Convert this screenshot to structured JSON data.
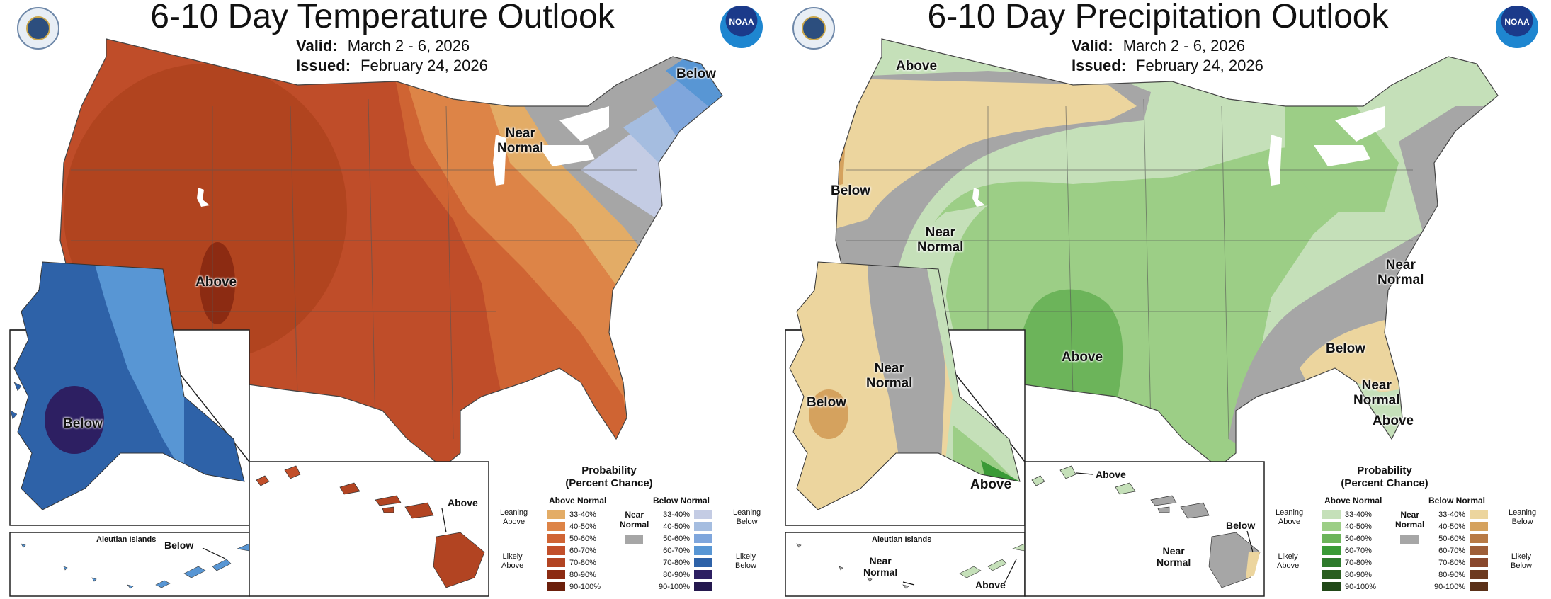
{
  "colors": {
    "above_temp": [
      "#e3ac66",
      "#dd8447",
      "#d06434",
      "#c24f2a",
      "#b24422",
      "#8c2b12",
      "#6b1f0b"
    ],
    "below_temp": [
      "#c4cce4",
      "#a5bde0",
      "#7fa6dc",
      "#5896d4",
      "#2e62a8",
      "#2d1f62",
      "#24184e"
    ],
    "above_precip": [
      "#c5e0b9",
      "#9cce86",
      "#6cb45a",
      "#3a9a36",
      "#2e7a2c",
      "#2a5e20",
      "#214818"
    ],
    "below_precip": [
      "#ecd59e",
      "#d5a25e",
      "#b87a45",
      "#9e5e38",
      "#89482d",
      "#6d3a20",
      "#5a3018"
    ],
    "near": "#a6a6a6"
  },
  "temperature": {
    "title": "6-10 Day Temperature Outlook",
    "valid_label": "Valid:",
    "valid_dates": "March 2 - 6, 2026",
    "issued_label": "Issued:",
    "issued_date": "February 24, 2026",
    "noaa": "NOAA",
    "labels": {
      "below_ne": "Below",
      "near_normal": "Near\nNormal",
      "above_sw": "Above",
      "below_ak": "Below",
      "below_aleutians": "Below",
      "above_hi": "Above"
    },
    "aleutian_islands": "Aleutian Islands",
    "legend": {
      "title": "Probability\n(Percent Chance)",
      "above_header": "Above Normal",
      "below_header": "Below Normal",
      "near_header": "Near\nNormal",
      "leaning_above": "Leaning\nAbove",
      "likely_above": "Likely\nAbove",
      "leaning_below": "Leaning\nBelow",
      "likely_below": "Likely\nBelow",
      "ranges": [
        "33-40%",
        "40-50%",
        "50-60%",
        "60-70%",
        "70-80%",
        "80-90%",
        "90-100%"
      ]
    }
  },
  "precipitation": {
    "title": "6-10 Day Precipitation Outlook",
    "valid_label": "Valid:",
    "valid_dates": "March 2 - 6, 2026",
    "issued_label": "Issued:",
    "issued_date": "February 24, 2026",
    "noaa": "NOAA",
    "labels": {
      "above_nw": "Above",
      "below_wc": "Below",
      "near_west": "Near\nNormal",
      "above_tx": "Above",
      "near_se": "Near\nNormal",
      "below_se": "Below",
      "near_fl": "Near\nNormal",
      "above_fl": "Above",
      "near_ak": "Near\nNormal",
      "below_ak": "Below",
      "above_ak": "Above",
      "near_aleutians": "Near\nNormal",
      "above_aleutians": "Above",
      "above_hi": "Above",
      "below_hi": "Below",
      "near_hi": "Near\nNormal"
    },
    "aleutian_islands": "Aleutian Islands",
    "legend": {
      "title": "Probability\n(Percent Chance)",
      "above_header": "Above Normal",
      "below_header": "Below Normal",
      "near_header": "Near\nNormal",
      "leaning_above": "Leaning\nAbove",
      "likely_above": "Likely\nAbove",
      "leaning_below": "Leaning\nBelow",
      "likely_below": "Likely\nBelow",
      "ranges": [
        "33-40%",
        "40-50%",
        "50-60%",
        "60-70%",
        "70-80%",
        "80-90%",
        "90-100%"
      ]
    }
  }
}
